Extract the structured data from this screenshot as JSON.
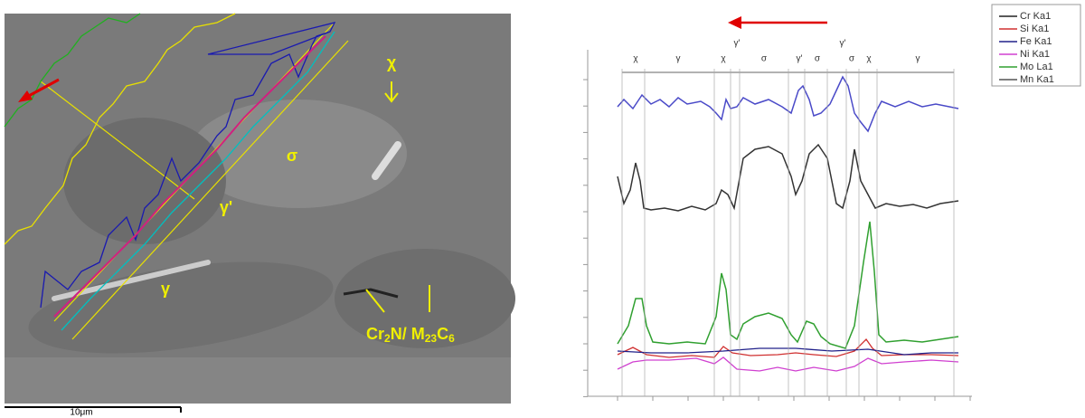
{
  "sem_image": {
    "phase_labels": [
      "χ",
      "σ",
      "γ'",
      "γ"
    ],
    "precipitate_label": [
      "Cr",
      "2",
      "N/ M",
      "23",
      "C",
      "6"
    ],
    "scale_bar": "10μm"
  },
  "line_profile": {
    "phase_labels": [
      "χ",
      "γ",
      "χ",
      "γ'",
      "σ",
      "γ'",
      "σ",
      "γ'",
      "σ",
      "χ",
      "γ"
    ],
    "legend": [
      {
        "name": "Cr Ka1",
        "color": "#222222"
      },
      {
        "name": "Si Ka1",
        "color": "#d03030"
      },
      {
        "name": "Fe Ka1",
        "color": "#20208a"
      },
      {
        "name": "Ni Ka1",
        "color": "#d040d0"
      },
      {
        "name": "Mo La1",
        "color": "#30a030"
      },
      {
        "name": "Mn Ka1",
        "color": "#555555"
      }
    ]
  }
}
